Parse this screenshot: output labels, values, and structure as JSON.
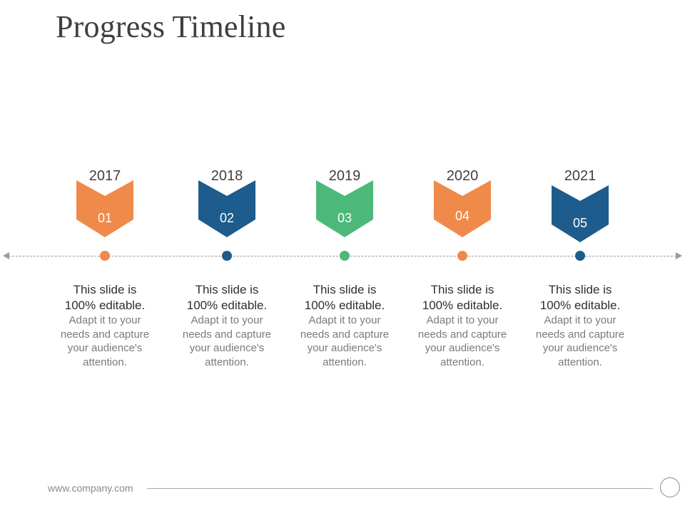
{
  "title": "Progress Timeline",
  "milestones": [
    {
      "year": "2017",
      "number": "01",
      "color": "#ef8a4b",
      "headline": "This slide is\n100% editable.",
      "body": "Adapt it to your\nneeds and capture\nyour audience's\nattention."
    },
    {
      "year": "2018",
      "number": "02",
      "color": "#1d5c8c",
      "headline": "This slide is\n100% editable.",
      "body": "Adapt it to your\nneeds and capture\nyour audience's\nattention."
    },
    {
      "year": "2019",
      "number": "03",
      "color": "#4cb97a",
      "headline": "This slide is\n100% editable.",
      "body": "Adapt it to your\nneeds and capture\nyour audience's\nattention."
    },
    {
      "year": "2020",
      "number": "04",
      "color": "#ef8a4b",
      "headline": "This slide is\n100% editable.",
      "body": "Adapt it to your\nneeds and capture\nyour audience's\nattention."
    },
    {
      "year": "2021",
      "number": "05",
      "color": "#1d5c8c",
      "headline": "This slide is\n100% editable.",
      "body": "Adapt it to your\nneeds and capture\nyour audience's\nattention."
    }
  ],
  "footer": {
    "url": "www.company.com"
  }
}
